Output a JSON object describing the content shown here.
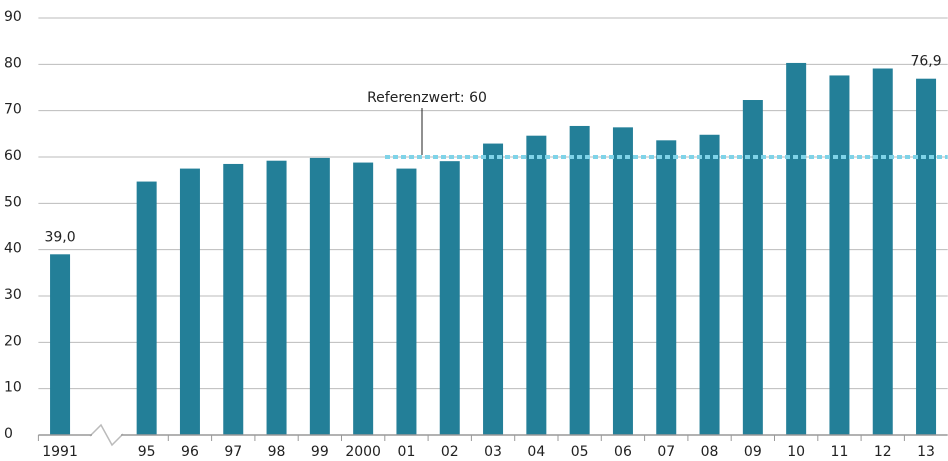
{
  "chart_data": {
    "type": "bar",
    "categories": [
      "1991",
      null,
      "95",
      "96",
      "97",
      "98",
      "99",
      "2000",
      "01",
      "02",
      "03",
      "04",
      "05",
      "06",
      "07",
      "08",
      "09",
      "10",
      "11",
      "12",
      "13"
    ],
    "values": [
      39.0,
      null,
      54.7,
      57.5,
      58.5,
      59.2,
      59.8,
      58.8,
      57.5,
      59.1,
      62.9,
      64.6,
      66.7,
      66.4,
      63.6,
      64.8,
      72.3,
      80.3,
      77.6,
      79.1,
      76.9
    ],
    "value_labels": [
      "39,0",
      null,
      null,
      null,
      null,
      null,
      null,
      null,
      null,
      null,
      null,
      null,
      null,
      null,
      null,
      null,
      null,
      null,
      null,
      null,
      "76,9"
    ],
    "color": "#237f98",
    "ylim": [
      0,
      90
    ],
    "yticks": [
      0,
      10,
      20,
      30,
      40,
      50,
      60,
      70,
      80,
      90
    ],
    "grid": true,
    "reference": {
      "label": "Referenzwert: 60",
      "value": 60,
      "color": "#7fd3e8"
    }
  }
}
